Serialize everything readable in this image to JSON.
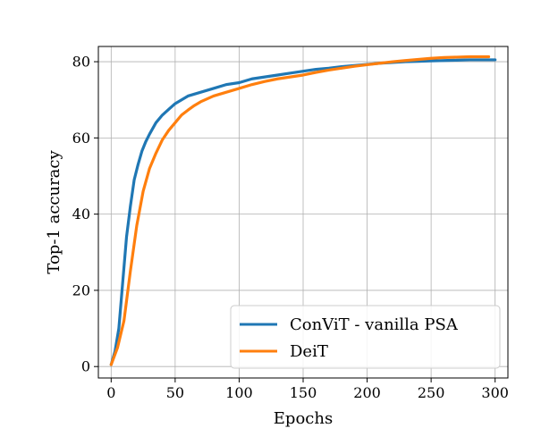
{
  "chart_data": {
    "type": "line",
    "title": "",
    "xlabel": "Epochs",
    "ylabel": "Top-1 accuracy",
    "xlim": [
      -10,
      310
    ],
    "ylim": [
      -3,
      84
    ],
    "xticks": [
      0,
      50,
      100,
      150,
      200,
      250,
      300
    ],
    "yticks": [
      0,
      20,
      40,
      60,
      80
    ],
    "grid": true,
    "legend_position": "bottom-right",
    "series": [
      {
        "name": "ConViT - vanilla PSA",
        "color": "#1f77b4",
        "x": [
          0,
          3,
          6,
          9,
          12,
          15,
          18,
          21,
          24,
          27,
          30,
          35,
          40,
          45,
          50,
          55,
          60,
          65,
          70,
          80,
          90,
          100,
          110,
          120,
          130,
          140,
          150,
          160,
          170,
          180,
          190,
          200,
          210,
          220,
          230,
          240,
          250,
          260,
          270,
          280,
          290,
          300
        ],
        "y": [
          0.5,
          4,
          10,
          22,
          34,
          42,
          49,
          53,
          56.5,
          59,
          61,
          64,
          66,
          67.5,
          69,
          70,
          71,
          71.5,
          72,
          73,
          74,
          74.5,
          75.5,
          76,
          76.5,
          77,
          77.5,
          78,
          78.3,
          78.7,
          79,
          79.3,
          79.6,
          79.8,
          80,
          80.1,
          80.2,
          80.3,
          80.4,
          80.5,
          80.5,
          80.5
        ]
      },
      {
        "name": "DeiT",
        "color": "#ff7f0e",
        "x": [
          0,
          5,
          10,
          15,
          20,
          25,
          30,
          35,
          40,
          45,
          50,
          55,
          60,
          65,
          70,
          80,
          90,
          100,
          110,
          120,
          130,
          140,
          150,
          160,
          170,
          180,
          190,
          200,
          210,
          220,
          230,
          240,
          250,
          260,
          270,
          280,
          290,
          295
        ],
        "y": [
          0.5,
          5,
          12,
          25,
          37,
          46,
          52,
          56,
          59.5,
          62,
          64,
          66,
          67.3,
          68.5,
          69.5,
          71,
          72,
          73,
          74,
          74.8,
          75.5,
          76,
          76.5,
          77.2,
          77.8,
          78.3,
          78.8,
          79.2,
          79.6,
          80,
          80.3,
          80.6,
          80.9,
          81.1,
          81.2,
          81.3,
          81.3,
          81.3
        ]
      }
    ]
  }
}
